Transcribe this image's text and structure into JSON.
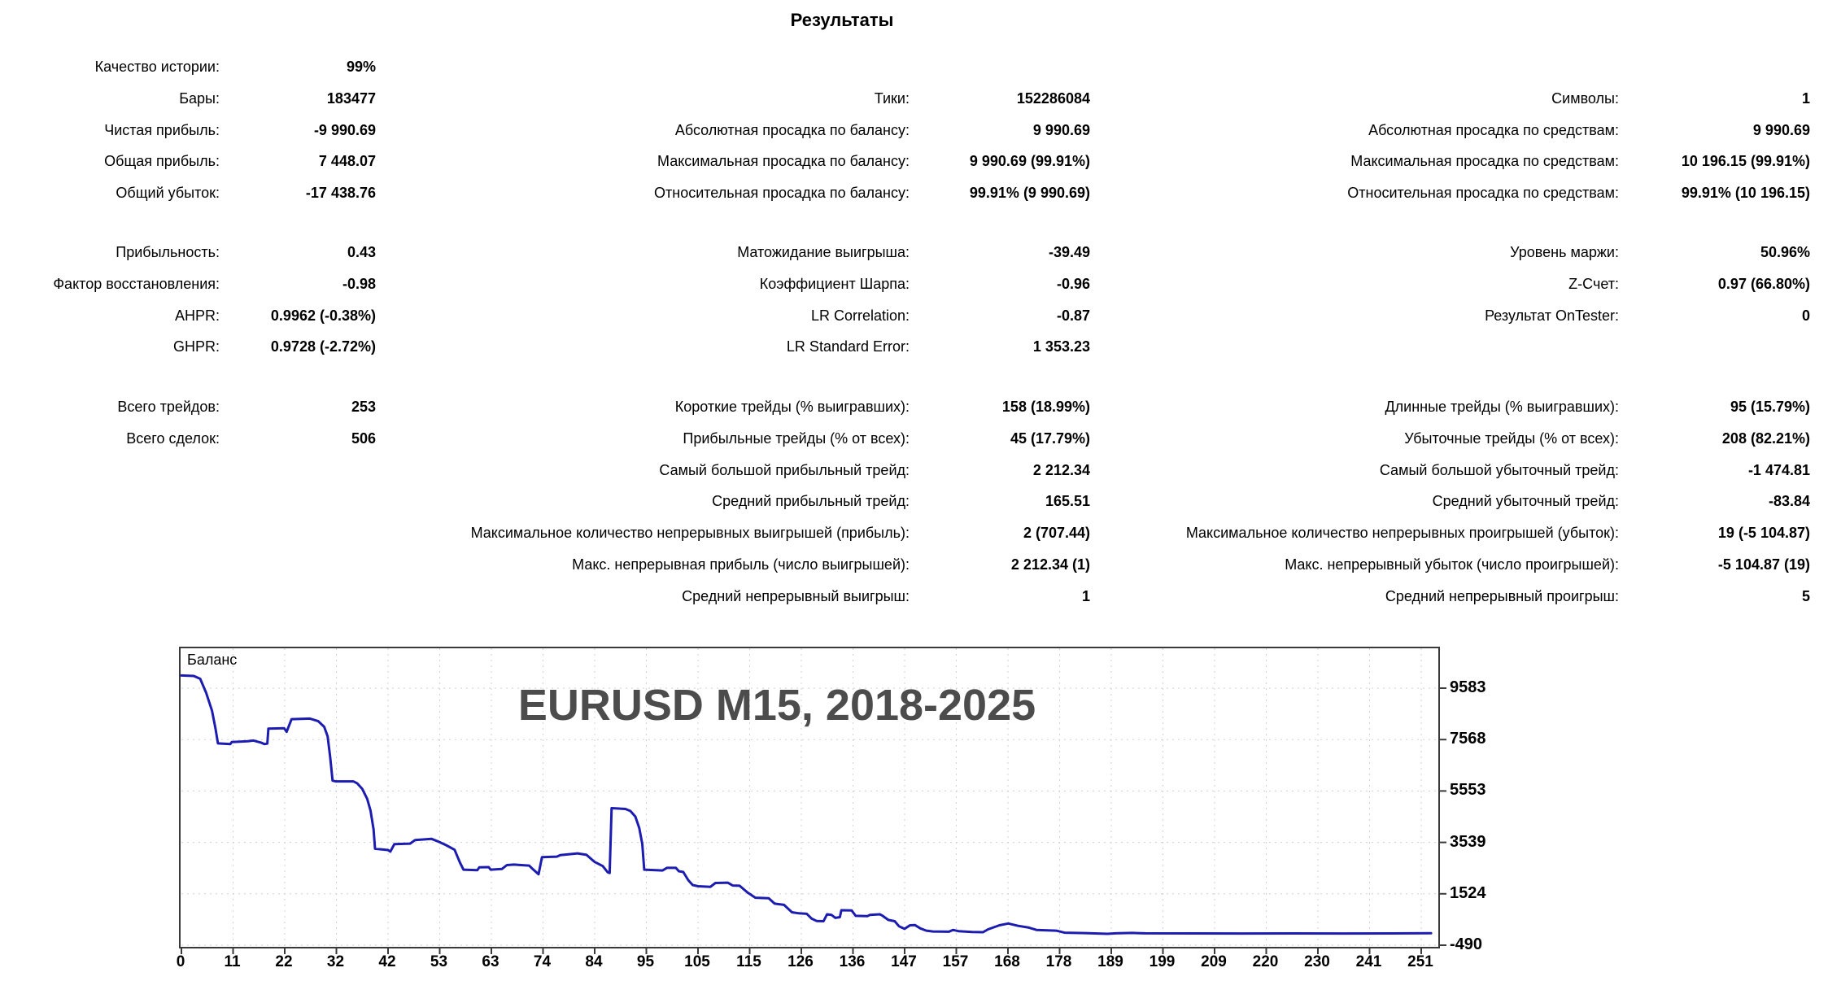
{
  "report_title": "Результаты",
  "stats": {
    "blocks": [
      {
        "rows": [
          {
            "cells": [
              [
                "Качество истории:",
                "99%"
              ],
              null,
              null
            ]
          },
          {
            "cells": [
              [
                "Бары:",
                "183477"
              ],
              [
                "Тики:",
                "152286084"
              ],
              [
                "Символы:",
                "1"
              ]
            ]
          },
          {
            "cells": [
              [
                "Чистая прибыль:",
                "-9 990.69"
              ],
              [
                "Абсолютная просадка по балансу:",
                "9 990.69"
              ],
              [
                "Абсолютная просадка по средствам:",
                "9 990.69"
              ]
            ]
          },
          {
            "cells": [
              [
                "Общая прибыль:",
                "7 448.07"
              ],
              [
                "Максимальная просадка по балансу:",
                "9 990.69 (99.91%)"
              ],
              [
                "Максимальная просадка по средствам:",
                "10 196.15 (99.91%)"
              ]
            ]
          },
          {
            "cells": [
              [
                "Общий убыток:",
                "-17 438.76"
              ],
              [
                "Относительная просадка по балансу:",
                "99.91% (9 990.69)"
              ],
              [
                "Относительная просадка по средствам:",
                "99.91% (10 196.15)"
              ]
            ]
          }
        ]
      },
      {
        "rows": [
          {
            "cells": [
              [
                "Прибыльность:",
                "0.43"
              ],
              [
                "Матожидание выигрыша:",
                "-39.49"
              ],
              [
                "Уровень маржи:",
                "50.96%"
              ]
            ]
          },
          {
            "cells": [
              [
                "Фактор восстановления:",
                "-0.98"
              ],
              [
                "Коэффициент Шарпа:",
                "-0.96"
              ],
              [
                "Z-Счет:",
                "0.97 (66.80%)"
              ]
            ]
          },
          {
            "cells": [
              [
                "AHPR:",
                "0.9962 (-0.38%)"
              ],
              [
                "LR Correlation:",
                "-0.87"
              ],
              [
                "Результат OnTester:",
                "0"
              ]
            ]
          },
          {
            "cells": [
              [
                "GHPR:",
                "0.9728 (-2.72%)"
              ],
              [
                "LR Standard Error:",
                "1 353.23"
              ],
              null
            ]
          }
        ]
      },
      {
        "rows": [
          {
            "cells": [
              [
                "Всего трейдов:",
                "253"
              ],
              [
                "Короткие трейды (% выигравших):",
                "158 (18.99%)"
              ],
              [
                "Длинные трейды (% выигравших):",
                "95 (15.79%)"
              ]
            ]
          },
          {
            "cells": [
              [
                "Всего сделок:",
                "506"
              ],
              [
                "Прибыльные трейды (% от всех):",
                "45 (17.79%)"
              ],
              [
                "Убыточные трейды (% от всех):",
                "208 (82.21%)"
              ]
            ]
          },
          {
            "cells": [
              null,
              [
                "Самый большой прибыльный трейд:",
                "2 212.34"
              ],
              [
                "Самый большой убыточный трейд:",
                "-1 474.81"
              ]
            ]
          },
          {
            "cells": [
              null,
              [
                "Средний прибыльный трейд:",
                "165.51"
              ],
              [
                "Средний убыточный трейд:",
                "-83.84"
              ]
            ]
          },
          {
            "cells": [
              null,
              [
                "Максимальное количество непрерывных выигрышей (прибыль):",
                "2 (707.44)"
              ],
              [
                "Максимальное количество непрерывных проигрышей (убыток):",
                "19 (-5 104.87)"
              ]
            ]
          },
          {
            "cells": [
              null,
              [
                "Макс. непрерывная прибыль (число выигрышей):",
                "2 212.34 (1)"
              ],
              [
                "Макс. непрерывный убыток (число проигрышей):",
                "-5 104.87 (19)"
              ]
            ]
          },
          {
            "cells": [
              null,
              [
                "Средний непрерывный выигрыш:",
                "1"
              ],
              [
                "Средний непрерывный проигрыш:",
                "5"
              ]
            ]
          }
        ]
      }
    ]
  },
  "chart_data": {
    "type": "line",
    "title": "EURUSD M15, 2018-2025",
    "series_label": "Баланс",
    "legend_position": "top-left-inside",
    "grid": "dashed",
    "line_color": "#1c1cb0",
    "title_color": "#4c4c4c",
    "x_ticks": [
      0,
      11,
      22,
      32,
      42,
      53,
      63,
      74,
      84,
      95,
      105,
      115,
      126,
      136,
      147,
      157,
      168,
      178,
      189,
      199,
      209,
      220,
      230,
      241,
      251
    ],
    "y_ticks": [
      9583,
      7568,
      5553,
      3539,
      1524,
      -490
    ],
    "x_axis": "trades",
    "y_axis": "balance",
    "series": [
      {
        "name": "Баланс",
        "points": [
          [
            0,
            10080
          ],
          [
            2.5,
            10060
          ],
          [
            3.8,
            9950
          ],
          [
            5,
            9400
          ],
          [
            6.2,
            8700
          ],
          [
            6.9,
            8000
          ],
          [
            7.4,
            7420
          ],
          [
            9.9,
            7390
          ],
          [
            10.2,
            7470
          ],
          [
            13.4,
            7500
          ],
          [
            14.6,
            7530
          ],
          [
            16.1,
            7450
          ],
          [
            16.8,
            7390
          ],
          [
            17.4,
            7410
          ],
          [
            17.6,
            8000
          ],
          [
            20.8,
            8010
          ],
          [
            21.3,
            7870
          ],
          [
            22.3,
            8370
          ],
          [
            26,
            8390
          ],
          [
            27.7,
            8290
          ],
          [
            28.9,
            8070
          ],
          [
            29.6,
            7700
          ],
          [
            30.1,
            6900
          ],
          [
            30.6,
            5960
          ],
          [
            31.2,
            5930
          ],
          [
            34.8,
            5930
          ],
          [
            35.6,
            5850
          ],
          [
            36.6,
            5640
          ],
          [
            37.6,
            5250
          ],
          [
            38.3,
            4780
          ],
          [
            38.9,
            4050
          ],
          [
            39.2,
            3290
          ],
          [
            41.8,
            3240
          ],
          [
            42.3,
            3180
          ],
          [
            43.1,
            3470
          ],
          [
            46.3,
            3490
          ],
          [
            47.3,
            3630
          ],
          [
            50.6,
            3680
          ],
          [
            51.9,
            3580
          ],
          [
            53.6,
            3430
          ],
          [
            55.3,
            3250
          ],
          [
            56.4,
            2750
          ],
          [
            57.1,
            2470
          ],
          [
            59.9,
            2450
          ],
          [
            60.3,
            2560
          ],
          [
            62.2,
            2570
          ],
          [
            62.6,
            2470
          ],
          [
            64.9,
            2500
          ],
          [
            65.9,
            2650
          ],
          [
            67.3,
            2670
          ],
          [
            70.4,
            2630
          ],
          [
            71.2,
            2480
          ],
          [
            72.3,
            2290
          ],
          [
            73,
            2960
          ],
          [
            76,
            2980
          ],
          [
            76.7,
            3040
          ],
          [
            80.2,
            3110
          ],
          [
            82,
            3050
          ],
          [
            83.6,
            2780
          ],
          [
            85.3,
            2610
          ],
          [
            86.3,
            2370
          ],
          [
            86.7,
            2340
          ],
          [
            87.1,
            4880
          ],
          [
            89.9,
            4850
          ],
          [
            90.9,
            4770
          ],
          [
            91.9,
            4550
          ],
          [
            92.7,
            4100
          ],
          [
            93.3,
            3480
          ],
          [
            93.7,
            2470
          ],
          [
            97.4,
            2440
          ],
          [
            98.3,
            2540
          ],
          [
            100.1,
            2540
          ],
          [
            100.7,
            2410
          ],
          [
            101.6,
            2380
          ],
          [
            102.6,
            2060
          ],
          [
            103.5,
            1870
          ],
          [
            104.6,
            1820
          ],
          [
            107.1,
            1800
          ],
          [
            108.1,
            1950
          ],
          [
            110.6,
            1960
          ],
          [
            111.6,
            1850
          ],
          [
            113,
            1840
          ],
          [
            114.6,
            1580
          ],
          [
            116.2,
            1370
          ],
          [
            118.9,
            1350
          ],
          [
            120.1,
            1140
          ],
          [
            122,
            1090
          ],
          [
            123.6,
            800
          ],
          [
            125,
            760
          ],
          [
            126.6,
            740
          ],
          [
            127.6,
            550
          ],
          [
            128.6,
            460
          ],
          [
            130,
            450
          ],
          [
            130.7,
            720
          ],
          [
            131.6,
            700
          ],
          [
            132.4,
            580
          ],
          [
            133.3,
            610
          ],
          [
            133.6,
            880
          ],
          [
            135.7,
            870
          ],
          [
            136.5,
            660
          ],
          [
            138.9,
            650
          ],
          [
            139.4,
            700
          ],
          [
            141.4,
            720
          ],
          [
            141.9,
            670
          ],
          [
            143.1,
            500
          ],
          [
            144.4,
            450
          ],
          [
            145.3,
            250
          ],
          [
            146.4,
            150
          ],
          [
            147.5,
            290
          ],
          [
            148.5,
            300
          ],
          [
            149.6,
            170
          ],
          [
            150.8,
            80
          ],
          [
            152.1,
            50
          ],
          [
            155.4,
            40
          ],
          [
            156.2,
            110
          ],
          [
            157.3,
            60
          ],
          [
            160.1,
            30
          ],
          [
            162.3,
            20
          ],
          [
            163.3,
            130
          ],
          [
            165.6,
            290
          ],
          [
            167.4,
            360
          ],
          [
            169.4,
            270
          ],
          [
            171.6,
            200
          ],
          [
            173.1,
            110
          ],
          [
            177.1,
            80
          ],
          [
            178.8,
            0
          ],
          [
            183,
            -15
          ],
          [
            187.5,
            -45
          ],
          [
            189.1,
            -25
          ],
          [
            192.5,
            -10
          ],
          [
            195.1,
            -25
          ],
          [
            205,
            -28
          ],
          [
            215,
            -32
          ],
          [
            225,
            -27
          ],
          [
            235,
            -30
          ],
          [
            245,
            -28
          ],
          [
            253,
            -22
          ]
        ]
      }
    ]
  }
}
